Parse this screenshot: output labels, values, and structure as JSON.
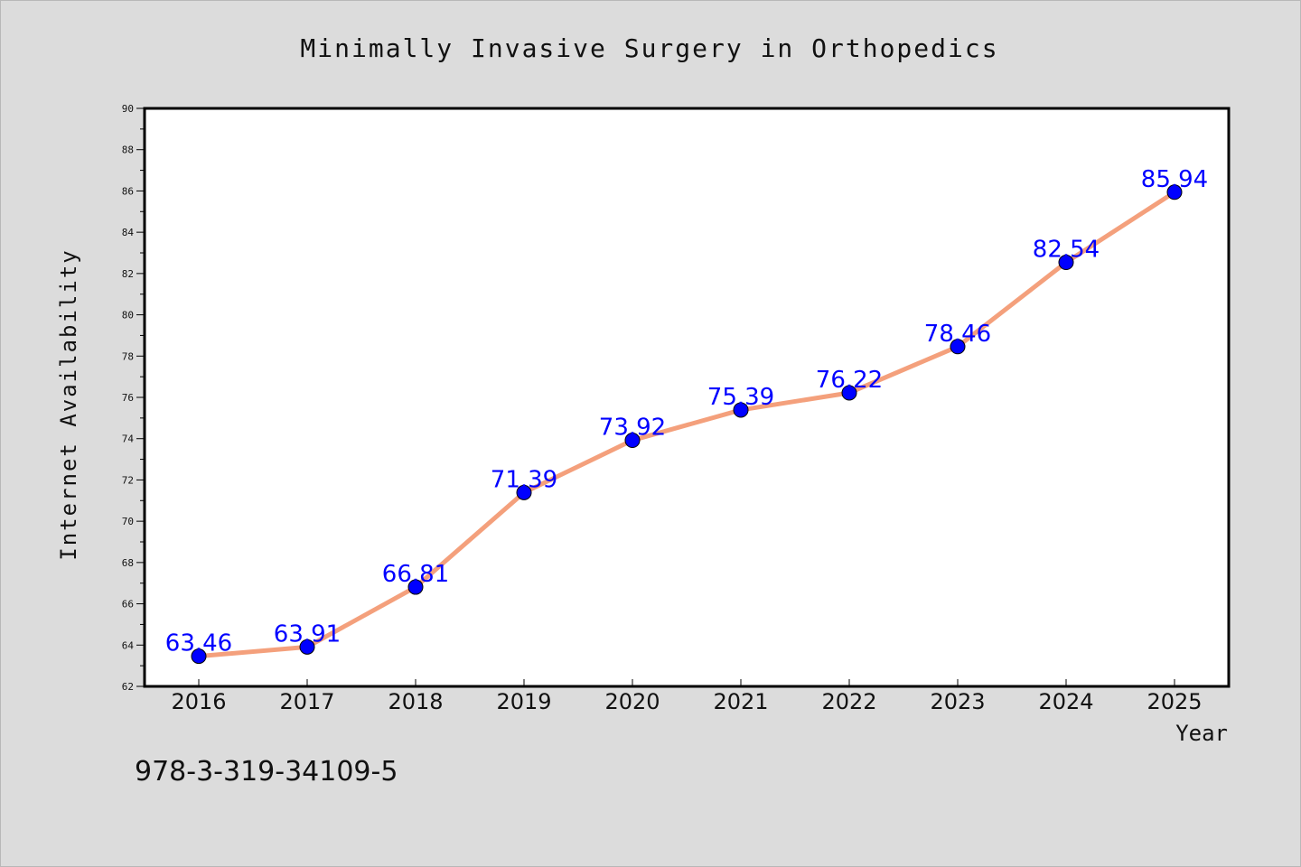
{
  "chart_data": {
    "type": "line",
    "title": "Minimally Invasive Surgery in Orthopedics",
    "xlabel": "Year",
    "ylabel": "Internet Availability",
    "categories": [
      "2016",
      "2017",
      "2018",
      "2019",
      "2020",
      "2021",
      "2022",
      "2023",
      "2024",
      "2025"
    ],
    "values": [
      63.46,
      63.91,
      66.81,
      71.39,
      73.92,
      75.39,
      76.22,
      78.46,
      82.54,
      85.94
    ],
    "value_labels": [
      "63.46",
      "63.91",
      "66.81",
      "71.39",
      "73.92",
      "75.39",
      "76.22",
      "78.46",
      "82.54",
      "85.94"
    ],
    "ylim": [
      62,
      90
    ],
    "yticks": [
      "62",
      "64",
      "66",
      "68",
      "70",
      "72",
      "74",
      "76",
      "78",
      "80",
      "82",
      "84",
      "86",
      "88",
      "90"
    ],
    "grid": false,
    "legend": "none",
    "line_color": "#f4a07c",
    "marker_color": "#0000ff",
    "label_color": "#0000ff"
  },
  "footnote": "978-3-319-34109-5",
  "colors": {
    "background": "#dcdcdc",
    "plot_background": "#ffffff"
  }
}
